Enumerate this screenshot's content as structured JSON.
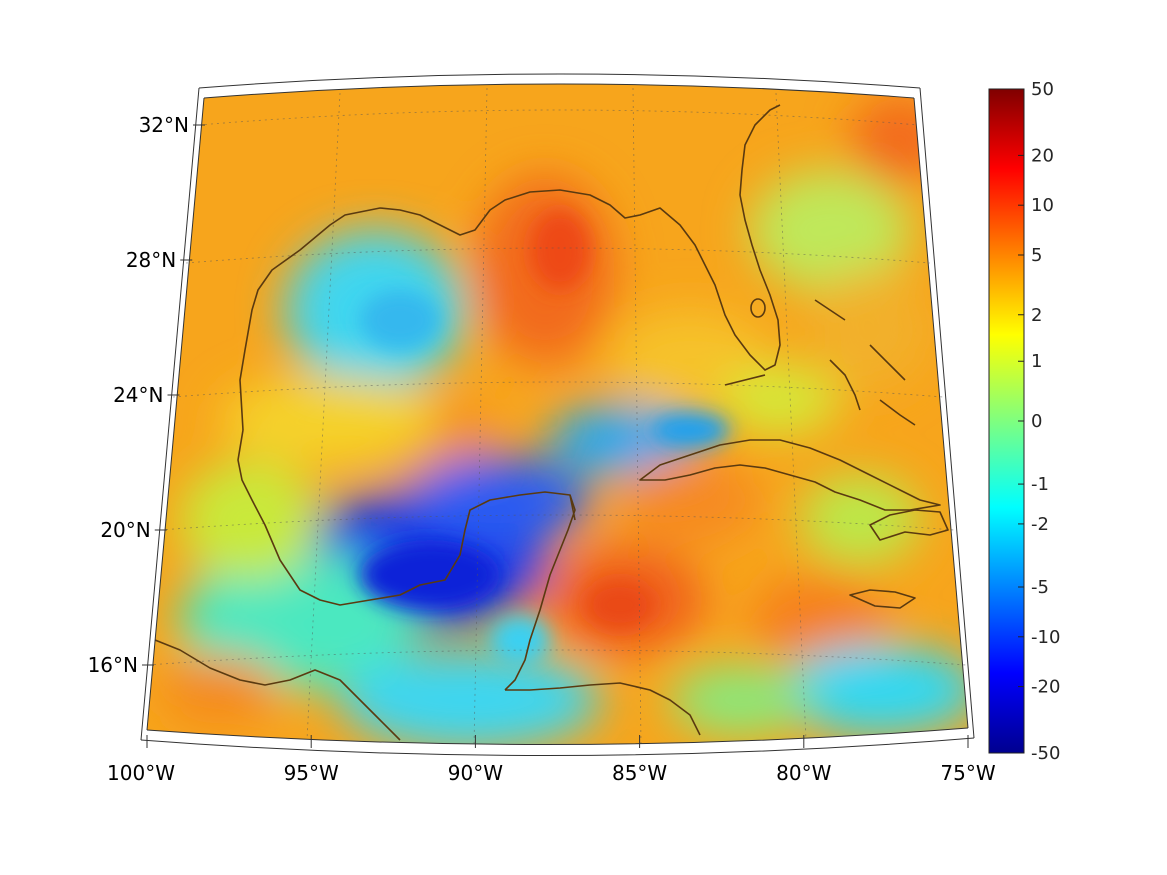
{
  "map": {
    "projection": "conic",
    "extent": {
      "lon": [
        -100,
        -75
      ],
      "lat": [
        14,
        33
      ]
    },
    "graticule_lines": "dotted",
    "coastline_color": "#5a3a10"
  },
  "axes": {
    "lat_labels": [
      {
        "value": 32,
        "text": "32°N"
      },
      {
        "value": 28,
        "text": "28°N"
      },
      {
        "value": 24,
        "text": "24°N"
      },
      {
        "value": 20,
        "text": "20°N"
      },
      {
        "value": 16,
        "text": "16°N"
      }
    ],
    "lon_labels": [
      {
        "value": -100,
        "text": "100°W"
      },
      {
        "value": -95,
        "text": "95°W"
      },
      {
        "value": -90,
        "text": "90°W"
      },
      {
        "value": -85,
        "text": "85°W"
      },
      {
        "value": -80,
        "text": "80°W"
      },
      {
        "value": -75,
        "text": "75°W"
      }
    ]
  },
  "colorbar": {
    "colormap": "jet",
    "scale": "symmetric-log",
    "range": [
      -50,
      50
    ],
    "ticks": [
      "50",
      "20",
      "10",
      "5",
      "2",
      "1",
      "0",
      "-1",
      "-2",
      "-5",
      "-10",
      "-20",
      "-50"
    ],
    "colors": [
      "#00008f",
      "#0000ff",
      "#00ffff",
      "#ffff00",
      "#ff0000",
      "#800000"
    ]
  }
}
